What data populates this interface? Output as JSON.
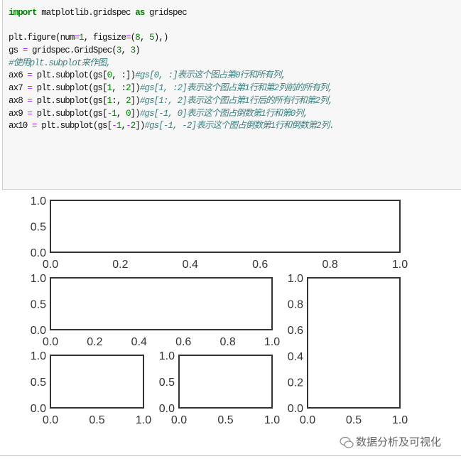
{
  "code_cell": {
    "lines": [
      [
        {
          "t": "import",
          "c": "k"
        },
        {
          "t": " matplotlib.gridspec ",
          "c": ""
        },
        {
          "t": "as",
          "c": "k"
        },
        {
          "t": " gridspec",
          "c": ""
        }
      ],
      [],
      [
        {
          "t": "plt.figure(num",
          "c": ""
        },
        {
          "t": "=",
          "c": "o"
        },
        {
          "t": "1",
          "c": "n"
        },
        {
          "t": ", figsize",
          "c": ""
        },
        {
          "t": "=",
          "c": "o"
        },
        {
          "t": "(",
          "c": ""
        },
        {
          "t": "8",
          "c": "n"
        },
        {
          "t": ", ",
          "c": ""
        },
        {
          "t": "5",
          "c": "n"
        },
        {
          "t": "),)",
          "c": ""
        }
      ],
      [
        {
          "t": "gs ",
          "c": ""
        },
        {
          "t": "=",
          "c": "o"
        },
        {
          "t": " gridspec.GridSpec(",
          "c": ""
        },
        {
          "t": "3",
          "c": "n"
        },
        {
          "t": ", ",
          "c": ""
        },
        {
          "t": "3",
          "c": "n"
        },
        {
          "t": ")",
          "c": ""
        }
      ],
      [
        {
          "t": "#使用plt.subplot来作图,",
          "c": "c"
        }
      ],
      [
        {
          "t": "ax6 ",
          "c": ""
        },
        {
          "t": "=",
          "c": "o"
        },
        {
          "t": " plt.subplot(gs[",
          "c": ""
        },
        {
          "t": "0",
          "c": "n"
        },
        {
          "t": ", :])",
          "c": ""
        },
        {
          "t": "#gs[0, :]表示这个图占第0行和所有列,",
          "c": "c"
        }
      ],
      [
        {
          "t": "ax7 ",
          "c": ""
        },
        {
          "t": "=",
          "c": "o"
        },
        {
          "t": " plt.subplot(gs[",
          "c": ""
        },
        {
          "t": "1",
          "c": "n"
        },
        {
          "t": ", :",
          "c": ""
        },
        {
          "t": "2",
          "c": "n"
        },
        {
          "t": "])",
          "c": ""
        },
        {
          "t": "#gs[1, :2]表示这个图占第1行和第2列前的所有列,",
          "c": "c"
        }
      ],
      [
        {
          "t": "ax8 ",
          "c": ""
        },
        {
          "t": "=",
          "c": "o"
        },
        {
          "t": " plt.subplot(gs[",
          "c": ""
        },
        {
          "t": "1",
          "c": "n"
        },
        {
          "t": ":, ",
          "c": ""
        },
        {
          "t": "2",
          "c": "n"
        },
        {
          "t": "])",
          "c": ""
        },
        {
          "t": "#gs[1:, 2]表示这个图占第1行后的所有行和第2列,",
          "c": "c"
        }
      ],
      [
        {
          "t": "ax9 ",
          "c": ""
        },
        {
          "t": "=",
          "c": "o"
        },
        {
          "t": " plt.subplot(gs[",
          "c": ""
        },
        {
          "t": "-",
          "c": "o"
        },
        {
          "t": "1",
          "c": "n"
        },
        {
          "t": ", ",
          "c": ""
        },
        {
          "t": "0",
          "c": "n"
        },
        {
          "t": "])",
          "c": ""
        },
        {
          "t": "#gs[-1, 0]表示这个图占倒数第1行和第0列,",
          "c": "c"
        }
      ],
      [
        {
          "t": "ax10 ",
          "c": ""
        },
        {
          "t": "=",
          "c": "o"
        },
        {
          "t": " plt.subplot(gs[",
          "c": ""
        },
        {
          "t": "-",
          "c": "o"
        },
        {
          "t": "1",
          "c": "n"
        },
        {
          "t": ",",
          "c": ""
        },
        {
          "t": "-",
          "c": "o"
        },
        {
          "t": "2",
          "c": "n"
        },
        {
          "t": "])",
          "c": ""
        },
        {
          "t": "#gs[-1, -2]表示这个图占倒数第1行和倒数第2列.",
          "c": "c"
        }
      ]
    ]
  },
  "chart_data": [
    {
      "type": "empty_axes",
      "name": "ax6",
      "xlim": [
        0,
        1
      ],
      "ylim": [
        0,
        1
      ],
      "xticks": [
        "0.0",
        "0.2",
        "0.4",
        "0.6",
        "0.8",
        "1.0"
      ],
      "yticks": [
        "0.0",
        "0.5",
        "1.0"
      ],
      "grid": false
    },
    {
      "type": "empty_axes",
      "name": "ax7",
      "xlim": [
        0,
        1
      ],
      "ylim": [
        0,
        1
      ],
      "xticks": [
        "0.0",
        "0.2",
        "0.4",
        "0.6",
        "0.8",
        "1.0"
      ],
      "yticks": [
        "0.0",
        "0.5",
        "1.0"
      ],
      "grid": false
    },
    {
      "type": "empty_axes",
      "name": "ax8",
      "xlim": [
        0,
        1
      ],
      "ylim": [
        0,
        1
      ],
      "xticks": [
        "0.0",
        "0.5",
        "1.0"
      ],
      "yticks": [
        "0.0",
        "0.2",
        "0.4",
        "0.6",
        "0.8",
        "1.0"
      ],
      "grid": false
    },
    {
      "type": "empty_axes",
      "name": "ax9",
      "xlim": [
        0,
        1
      ],
      "ylim": [
        0,
        1
      ],
      "xticks": [
        "0.0",
        "0.5",
        "1.0"
      ],
      "yticks": [
        "0.0",
        "0.5",
        "1.0"
      ],
      "grid": false
    },
    {
      "type": "empty_axes",
      "name": "ax10",
      "xlim": [
        0,
        1
      ],
      "ylim": [
        0,
        1
      ],
      "xticks": [
        "0.0",
        "0.5",
        "1.0"
      ],
      "yticks": [
        "0.0",
        "0.5",
        "1.0"
      ],
      "grid": false
    }
  ],
  "watermark": {
    "text": "数据分析及可视化",
    "icon": "wechat-icon"
  },
  "colors": {
    "keyword": "#008000",
    "number": "#008000",
    "operator": "#aa22ff",
    "comment": "#408080",
    "cell_bg": "#f7f7f7",
    "axes": "#333333"
  }
}
